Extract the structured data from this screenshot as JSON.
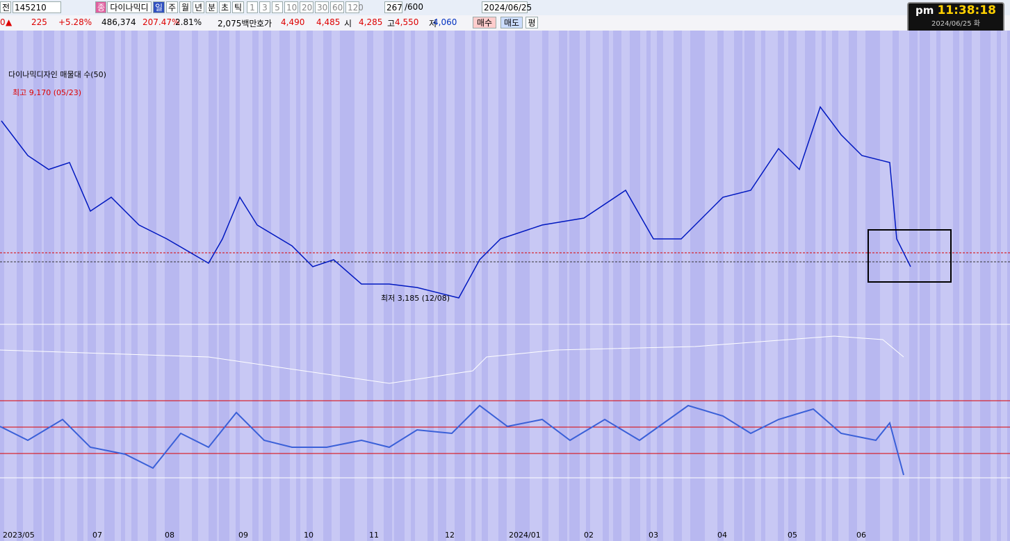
{
  "toolbar": {
    "market": "전",
    "code": "145210",
    "badge": "종",
    "name": "다이나믹디",
    "periods": [
      "일",
      "주",
      "월",
      "년",
      "분",
      "초",
      "틱"
    ],
    "intervals": [
      "1",
      "3",
      "5",
      "10",
      "20",
      "30",
      "60",
      "120"
    ],
    "count": "267",
    "count_max": "/600",
    "date": "2024/06/25"
  },
  "quote": {
    "lead": "0",
    "arrow": "▲",
    "change": "225",
    "change_pct": "+5.28%",
    "volume": "486,374",
    "volume_ratio": "207.47%",
    "turnover": "2.81%",
    "amount": "2,075백만",
    "ask_label": "호가",
    "ask": "4,490",
    "bid": "4,485",
    "open_label": "시",
    "open": "4,285",
    "high_label": "고",
    "high": "4,550",
    "low_label": "저",
    "low": "4,060",
    "buy": "매수",
    "sell": "매도",
    "avg": "평"
  },
  "clock": {
    "ampm": "pm",
    "time": "11:38:18",
    "date": "2024/06/25 화"
  },
  "chart": {
    "legend": "다이나믹디자인 매물대 수(50)",
    "high_note": "최고 9,170 (05/23)",
    "low_note": "최저 3,185 (12/08)",
    "months": [
      "2023/05",
      "07",
      "08",
      "09",
      "10",
      "11",
      "12",
      "2024/01",
      "02",
      "03",
      "04",
      "05",
      "06"
    ]
  }
}
